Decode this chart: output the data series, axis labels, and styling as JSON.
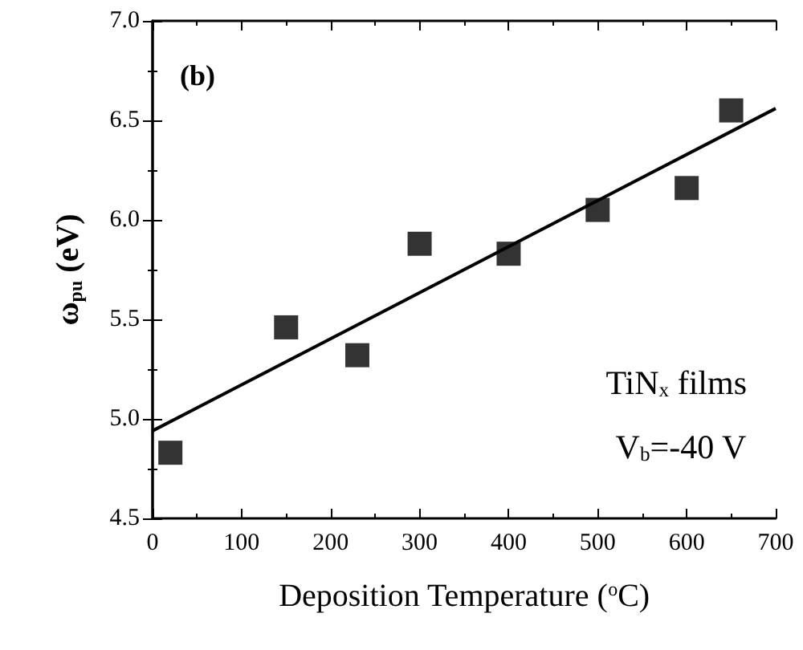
{
  "chart_data": {
    "type": "scatter",
    "xlabel": "Deposition Temperature ($^{o}$C)",
    "ylabel": "ω$_{pu}$ (eV)",
    "annotations": [
      "(b)",
      "TiN$_{x}$ films",
      "V$_{b}$=-40 V"
    ],
    "series": [
      {
        "color": "#000000",
        "marker": "square",
        "x": [
          20,
          150,
          230,
          300,
          400,
          500,
          600,
          650
        ],
        "values": [
          4.83,
          5.46,
          5.32,
          5.88,
          5.83,
          6.05,
          6.16,
          6.55
        ]
      },
      {
        "type": "line",
        "color": "#000000",
        "marker": "none",
        "line_style": "solid",
        "x": [
          0,
          700
        ],
        "values": [
          4.94,
          6.56
        ]
      }
    ],
    "xlim": [
      0,
      700
    ],
    "xticks": [
      0,
      100,
      200,
      300,
      400,
      500,
      600,
      700
    ],
    "ylim": [
      4.5,
      7.0
    ],
    "yticks": [
      4.5,
      {
        "value": 5.0,
        "label": "5.0"
      },
      5.5,
      {
        "value": 6.0,
        "label": "6.0"
      },
      6.5,
      {
        "value": 7.0,
        "label": "7.0"
      }
    ],
    "grid": false
  }
}
